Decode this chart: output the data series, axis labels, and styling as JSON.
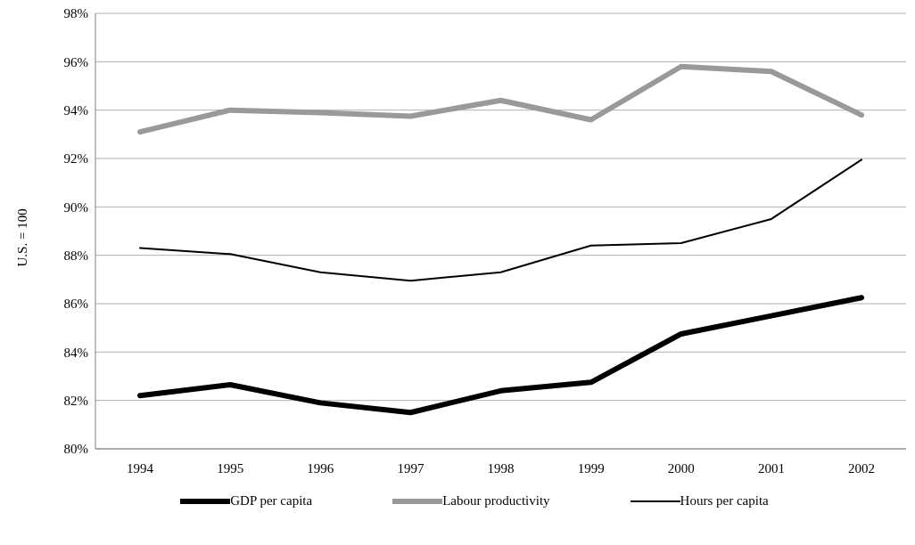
{
  "chart_data": {
    "type": "line",
    "ylabel": "U.S. = 100",
    "categories": [
      "1994",
      "1995",
      "1996",
      "1997",
      "1998",
      "1999",
      "2000",
      "2001",
      "2002"
    ],
    "series": [
      {
        "name": "GDP per capita",
        "color": "#000000",
        "values": [
          82.2,
          82.65,
          81.9,
          81.5,
          82.4,
          82.75,
          84.75,
          85.5,
          86.25
        ]
      },
      {
        "name": "Labour productivity",
        "color": "#999999",
        "values": [
          93.1,
          94.0,
          93.9,
          93.75,
          94.4,
          93.6,
          95.8,
          95.6,
          93.8
        ]
      },
      {
        "name": "Hours per capita",
        "color": "#000000",
        "values": [
          88.3,
          88.05,
          87.3,
          86.95,
          87.3,
          88.4,
          88.5,
          89.5,
          91.95
        ]
      }
    ],
    "ylim": [
      80,
      98
    ],
    "yticks": [
      {
        "value": 80,
        "label": "80%"
      },
      {
        "value": 82,
        "label": "82%"
      },
      {
        "value": 84,
        "label": "84%"
      },
      {
        "value": 86,
        "label": "86%"
      },
      {
        "value": 88,
        "label": "88%"
      },
      {
        "value": 90,
        "label": "90%"
      },
      {
        "value": 92,
        "label": "92%"
      },
      {
        "value": 94,
        "label": "94%"
      },
      {
        "value": 96,
        "label": "96%"
      },
      {
        "value": 98,
        "label": "98%"
      }
    ],
    "grid": "y",
    "legend": "bottom",
    "marker": "none",
    "line_style": "solid"
  }
}
